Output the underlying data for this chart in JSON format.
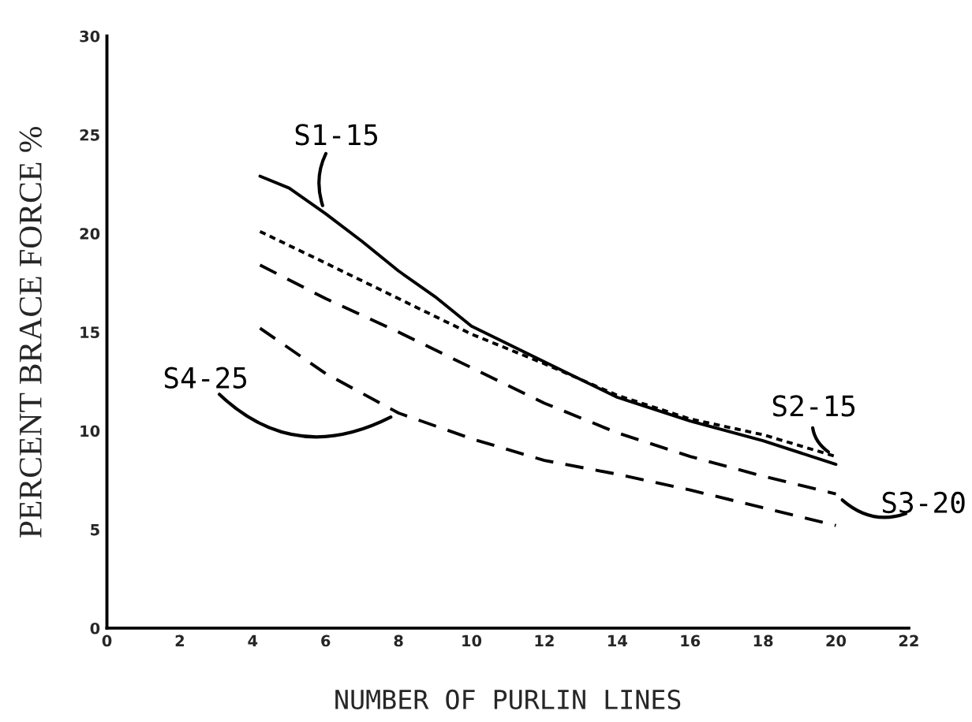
{
  "chart_data": {
    "type": "line",
    "xlabel": "NUMBER OF PURLIN LINES",
    "ylabel": "PERCENT BRACE FORCE %",
    "xlim": [
      0,
      22
    ],
    "xticks": [
      0,
      2,
      4,
      6,
      8,
      10,
      12,
      14,
      16,
      18,
      20,
      22
    ],
    "ylim": [
      0,
      30
    ],
    "yticks": [
      0,
      5,
      10,
      15,
      20,
      25,
      30
    ],
    "grid": false,
    "legend": false,
    "series": [
      {
        "name": "S1-15",
        "color": "#000000",
        "line_style": "solid",
        "x": [
          4.2,
          5,
          6,
          7,
          8,
          9,
          10,
          12,
          14,
          16,
          18,
          20
        ],
        "values": [
          22.9,
          22.3,
          21.0,
          19.6,
          18.1,
          16.8,
          15.3,
          13.5,
          11.7,
          10.5,
          9.5,
          8.3
        ]
      },
      {
        "name": "S2-15",
        "color": "#000000",
        "line_style": "dotted",
        "x": [
          4.2,
          6,
          8,
          10,
          12,
          14,
          16,
          18,
          20
        ],
        "values": [
          20.1,
          18.5,
          16.7,
          14.9,
          13.4,
          11.8,
          10.6,
          9.8,
          8.7
        ]
      },
      {
        "name": "S3-20",
        "color": "#000000",
        "line_style": "dashed",
        "x": [
          4.2,
          6,
          8,
          10,
          12,
          14,
          16,
          18,
          20
        ],
        "values": [
          18.4,
          16.7,
          15.0,
          13.2,
          11.4,
          9.9,
          8.7,
          7.7,
          6.8
        ]
      },
      {
        "name": "S4-25",
        "color": "#000000",
        "line_style": "dashed",
        "x": [
          4.2,
          6,
          8,
          10,
          12,
          14,
          16,
          18,
          20
        ],
        "values": [
          15.2,
          12.9,
          10.9,
          9.6,
          8.5,
          7.8,
          7.0,
          6.1,
          5.2
        ]
      }
    ]
  }
}
